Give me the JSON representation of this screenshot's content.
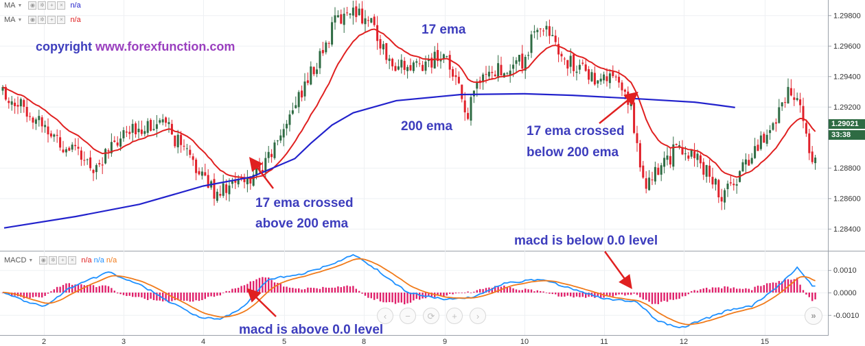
{
  "legend": {
    "ma1": {
      "label": "MA",
      "value": "n/a",
      "color": "#2222cc"
    },
    "ma2": {
      "label": "MA",
      "value": "n/a",
      "color": "#e02020"
    },
    "macd": {
      "label": "MACD",
      "values": [
        "n/a",
        "n/a",
        "n/a"
      ],
      "colors": [
        "#e02020",
        "#1e90ff",
        "#f07a1a"
      ]
    }
  },
  "annotations": {
    "copyright": "copyright www.forexfunction.com",
    "ema17": "17 ema",
    "ema200": "200 ema",
    "cross_up_line1": "17 ema crossed",
    "cross_up_line2": "above 200 ema",
    "cross_down_line1": "17 ema crossed",
    "cross_down_line2": "below 200 ema",
    "macd_below": "macd is below 0.0 level",
    "macd_above": "macd is above 0.0 level"
  },
  "price_tags": {
    "last_price": "1.29021",
    "countdown": "33:38"
  },
  "colors": {
    "up": "#2e6b43",
    "down": "#e0202a",
    "ema17": "#e02020",
    "ema200": "#2222cc",
    "macd_line": "#1e90ff",
    "signal_line": "#f07a1a",
    "histogram": "#e0206a",
    "annotation": "#3d3dbd",
    "copyright_text": "#3d3dbd",
    "copyright_link": "#9a3fbf"
  },
  "chart_data": {
    "type": "candlestick",
    "price_axis": {
      "ticks": [
        "1.29800",
        "1.29600",
        "1.29400",
        "1.29200",
        "1.28800",
        "1.28600",
        "1.28400"
      ],
      "ylim": [
        1.2826,
        1.299
      ]
    },
    "time_axis": {
      "ticks": [
        "2",
        "3",
        "4",
        "5",
        "8",
        "9",
        "10",
        "11",
        "12",
        "15"
      ]
    },
    "price_keypoints": [
      [
        0,
        1.293
      ],
      [
        10,
        1.2915
      ],
      [
        20,
        1.2895
      ],
      [
        30,
        1.288
      ],
      [
        40,
        1.29
      ],
      [
        48,
        1.291
      ],
      [
        55,
        1.2905
      ],
      [
        62,
        1.2885
      ],
      [
        70,
        1.2865
      ],
      [
        80,
        1.287
      ],
      [
        88,
        1.2885
      ],
      [
        95,
        1.2915
      ],
      [
        103,
        1.2945
      ],
      [
        110,
        1.2975
      ],
      [
        116,
        1.2985
      ],
      [
        122,
        1.2975
      ],
      [
        128,
        1.295
      ],
      [
        134,
        1.2945
      ],
      [
        140,
        1.2948
      ],
      [
        146,
        1.2955
      ],
      [
        150,
        1.2935
      ],
      [
        154,
        1.2915
      ],
      [
        158,
        1.294
      ],
      [
        165,
        1.2945
      ],
      [
        172,
        1.295
      ],
      [
        178,
        1.2975
      ],
      [
        184,
        1.2955
      ],
      [
        190,
        1.2945
      ],
      [
        196,
        1.294
      ],
      [
        202,
        1.2938
      ],
      [
        208,
        1.292
      ],
      [
        212,
        1.287
      ],
      [
        216,
        1.2875
      ],
      [
        222,
        1.289
      ],
      [
        228,
        1.289
      ],
      [
        234,
        1.2875
      ],
      [
        238,
        1.286
      ],
      [
        242,
        1.287
      ],
      [
        248,
        1.289
      ],
      [
        254,
        1.2905
      ],
      [
        260,
        1.293
      ],
      [
        264,
        1.2925
      ],
      [
        268,
        1.2885
      ]
    ],
    "ema200_keypoints": [
      [
        1.5,
        1.28405
      ],
      [
        2.4,
        1.2848
      ],
      [
        3.2,
        1.2856
      ],
      [
        4.0,
        1.2868
      ],
      [
        4.6,
        1.2874
      ],
      [
        5.4,
        1.2886
      ],
      [
        6.0,
        1.2896
      ],
      [
        6.8,
        1.2908
      ],
      [
        7.6,
        1.2916
      ],
      [
        8.4,
        1.2924
      ],
      [
        9.2,
        1.2928
      ],
      [
        10.0,
        1.29285
      ],
      [
        10.6,
        1.29275
      ],
      [
        11.5,
        1.2925
      ],
      [
        12.4,
        1.2923
      ],
      [
        13.3,
        1.2921
      ],
      [
        13.9,
        1.29195
      ]
    ],
    "macd_axis": {
      "ticks": [
        "0.0010",
        "0.0000",
        "-0.0010"
      ],
      "ylim": [
        -0.0018,
        0.0018
      ]
    },
    "macd_keypoints": [
      [
        0,
        0.0
      ],
      [
        8,
        -0.0004
      ],
      [
        14,
        -0.0006
      ],
      [
        22,
        0.0002
      ],
      [
        35,
        0.0009
      ],
      [
        45,
        0.0004
      ],
      [
        55,
        -0.0004
      ],
      [
        65,
        -0.0011
      ],
      [
        72,
        -0.0012
      ],
      [
        80,
        -0.0006
      ],
      [
        88,
        0.0006
      ],
      [
        98,
        0.0008
      ],
      [
        108,
        0.0012
      ],
      [
        116,
        0.0017
      ],
      [
        124,
        0.001
      ],
      [
        134,
        0.0
      ],
      [
        146,
        -0.0003
      ],
      [
        156,
        -0.0002
      ],
      [
        166,
        0.0004
      ],
      [
        178,
        0.0006
      ],
      [
        190,
        0.0001
      ],
      [
        200,
        -0.0003
      ],
      [
        210,
        -0.0004
      ],
      [
        216,
        -0.0012
      ],
      [
        224,
        -0.0016
      ],
      [
        232,
        -0.0012
      ],
      [
        240,
        -0.0008
      ],
      [
        248,
        -0.0006
      ],
      [
        256,
        0.0002
      ],
      [
        263,
        0.0011
      ],
      [
        268,
        0.0003
      ]
    ]
  }
}
